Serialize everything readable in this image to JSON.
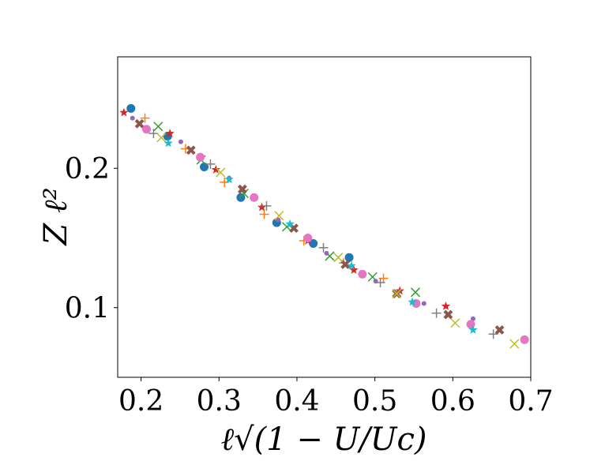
{
  "chart_data": {
    "type": "scatter",
    "xlabel": "ℓ√(1 − U/Uc)",
    "ylabel": "Z ℓ²",
    "xlim": [
      0.17,
      0.7
    ],
    "ylim": [
      0.05,
      0.28
    ],
    "grid": false,
    "xticks": [
      {
        "value": 0.2,
        "label": "0.2"
      },
      {
        "value": 0.3,
        "label": "0.3"
      },
      {
        "value": 0.4,
        "label": "0.4"
      },
      {
        "value": 0.5,
        "label": "0.5"
      },
      {
        "value": 0.6,
        "label": "0.6"
      },
      {
        "value": 0.7,
        "label": "0.7"
      }
    ],
    "yticks": [
      {
        "value": 0.1,
        "label": "0.1"
      },
      {
        "value": 0.2,
        "label": "0.2"
      }
    ],
    "series": [
      {
        "marker": "circle-large",
        "color": "#1f77b4",
        "points": [
          [
            0.187,
            0.243
          ],
          [
            0.234,
            0.223
          ],
          [
            0.281,
            0.201
          ],
          [
            0.328,
            0.179
          ],
          [
            0.374,
            0.161
          ],
          [
            0.421,
            0.146
          ],
          [
            0.467,
            0.136
          ]
        ]
      },
      {
        "marker": "plus",
        "color": "#ff7f0e",
        "points": [
          [
            0.205,
            0.236
          ],
          [
            0.257,
            0.214
          ],
          [
            0.307,
            0.19
          ],
          [
            0.358,
            0.167
          ],
          [
            0.409,
            0.148
          ],
          [
            0.46,
            0.132
          ],
          [
            0.511,
            0.121
          ]
        ]
      },
      {
        "marker": "x",
        "color": "#2ca02c",
        "points": [
          [
            0.222,
            0.23
          ],
          [
            0.277,
            0.206
          ],
          [
            0.332,
            0.182
          ],
          [
            0.387,
            0.158
          ],
          [
            0.442,
            0.137
          ],
          [
            0.497,
            0.122
          ],
          [
            0.552,
            0.111
          ]
        ]
      },
      {
        "marker": "star",
        "color": "#d62728",
        "points": [
          [
            0.178,
            0.24
          ],
          [
            0.237,
            0.225
          ],
          [
            0.296,
            0.199
          ],
          [
            0.355,
            0.172
          ],
          [
            0.414,
            0.148
          ],
          [
            0.473,
            0.127
          ],
          [
            0.532,
            0.112
          ],
          [
            0.591,
            0.101
          ]
        ]
      },
      {
        "marker": "circle-small",
        "color": "#9467bd",
        "points": [
          [
            0.189,
            0.236
          ],
          [
            0.251,
            0.219
          ],
          [
            0.313,
            0.193
          ],
          [
            0.376,
            0.163
          ],
          [
            0.438,
            0.139
          ],
          [
            0.501,
            0.119
          ],
          [
            0.563,
            0.103
          ],
          [
            0.626,
            0.092
          ]
        ]
      },
      {
        "marker": "x-bold",
        "color": "#8c564b",
        "points": [
          [
            0.198,
            0.232
          ],
          [
            0.264,
            0.213
          ],
          [
            0.33,
            0.185
          ],
          [
            0.396,
            0.157
          ],
          [
            0.462,
            0.131
          ],
          [
            0.528,
            0.11
          ],
          [
            0.594,
            0.095
          ],
          [
            0.66,
            0.084
          ]
        ]
      },
      {
        "marker": "circle-large",
        "color": "#e377c2",
        "points": [
          [
            0.207,
            0.228
          ],
          [
            0.276,
            0.208
          ],
          [
            0.345,
            0.179
          ],
          [
            0.414,
            0.15
          ],
          [
            0.484,
            0.124
          ],
          [
            0.553,
            0.103
          ],
          [
            0.623,
            0.088
          ],
          [
            0.692,
            0.077
          ]
        ]
      },
      {
        "marker": "plus",
        "color": "#7f7f7f",
        "points": [
          [
            0.216,
            0.225
          ],
          [
            0.289,
            0.203
          ],
          [
            0.361,
            0.173
          ],
          [
            0.434,
            0.143
          ],
          [
            0.507,
            0.118
          ],
          [
            0.579,
            0.096
          ],
          [
            0.652,
            0.081
          ]
        ]
      },
      {
        "marker": "x",
        "color": "#bcbd22",
        "points": [
          [
            0.226,
            0.222
          ],
          [
            0.302,
            0.197
          ],
          [
            0.377,
            0.166
          ],
          [
            0.453,
            0.136
          ],
          [
            0.528,
            0.11
          ],
          [
            0.603,
            0.089
          ],
          [
            0.679,
            0.074
          ]
        ]
      },
      {
        "marker": "star",
        "color": "#17becf",
        "points": [
          [
            0.235,
            0.218
          ],
          [
            0.313,
            0.192
          ],
          [
            0.391,
            0.16
          ],
          [
            0.47,
            0.13
          ],
          [
            0.548,
            0.104
          ],
          [
            0.626,
            0.084
          ]
        ]
      }
    ]
  }
}
